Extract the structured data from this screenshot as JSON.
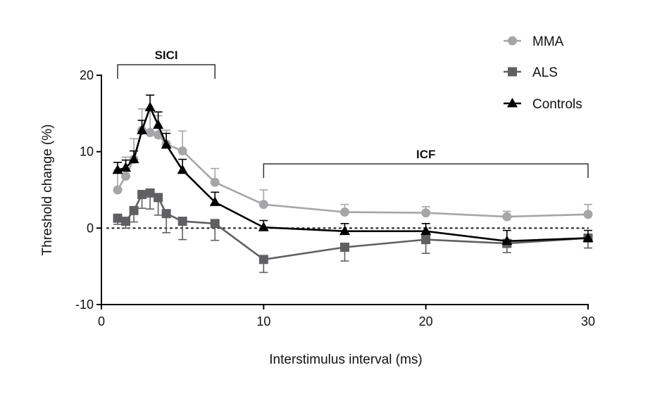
{
  "chart_data": {
    "type": "line",
    "title": "",
    "xlabel": "Interstimulus interval (ms)",
    "ylabel": "Threshold change (%)",
    "xlim": [
      0,
      30
    ],
    "ylim": [
      -10,
      20
    ],
    "xticks": [
      0,
      10,
      20,
      30
    ],
    "yticks": [
      -10,
      0,
      10,
      20
    ],
    "grid": false,
    "reference_line": {
      "y": 0,
      "style": "dotted"
    },
    "legend_position": "top-right",
    "brackets": [
      {
        "label": "SICI",
        "x_range": [
          1,
          7
        ]
      },
      {
        "label": "ICF",
        "x_range": [
          10,
          30
        ]
      }
    ],
    "x": [
      1,
      1.5,
      2,
      2.5,
      3,
      3.5,
      4,
      5,
      7,
      10,
      15,
      20,
      25,
      30
    ],
    "series": [
      {
        "name": "MMA",
        "marker": "circle",
        "color": "#a6a6a8",
        "values": [
          5.0,
          6.8,
          9.0,
          12.8,
          12.5,
          12.2,
          11.0,
          10.1,
          6.0,
          3.1,
          2.1,
          2.0,
          1.5,
          1.8
        ],
        "error": [
          2.6,
          2.5,
          2.7,
          2.8,
          2.9,
          2.5,
          1.8,
          2.6,
          1.8,
          1.9,
          1.0,
          0.8,
          0.7,
          1.3
        ],
        "error_direction": "up"
      },
      {
        "name": "ALS",
        "marker": "square",
        "color": "#606062",
        "values": [
          1.3,
          0.9,
          2.3,
          4.4,
          4.6,
          4.0,
          1.9,
          0.9,
          0.6,
          -4.1,
          -2.5,
          -1.5,
          -2.0,
          -1.3
        ],
        "error": [
          0.8,
          0.9,
          1.5,
          1.8,
          2.1,
          2.3,
          2.5,
          2.4,
          2.2,
          1.7,
          1.8,
          1.8,
          1.2,
          1.3
        ],
        "error_direction": "down"
      },
      {
        "name": "Controls",
        "marker": "triangle",
        "color": "#000000",
        "values": [
          7.6,
          7.9,
          9.0,
          12.8,
          15.8,
          13.5,
          10.9,
          7.6,
          3.4,
          0.1,
          -0.4,
          -0.4,
          -1.7,
          -1.3
        ],
        "error": [
          1.0,
          1.0,
          1.1,
          1.3,
          1.6,
          1.7,
          1.5,
          1.4,
          1.3,
          0.9,
          1.0,
          1.0,
          1.4,
          1.0
        ],
        "error_direction": "up"
      }
    ]
  }
}
